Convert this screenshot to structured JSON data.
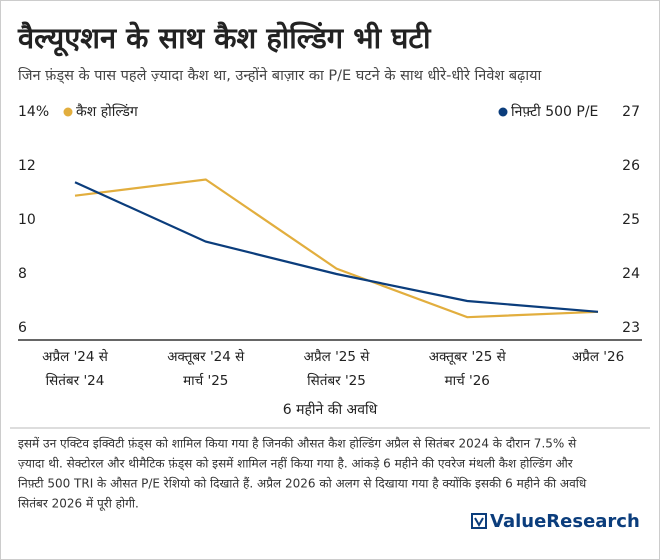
{
  "chart_data": {
    "type": "line",
    "title": "वैल्यूएशन के साथ कैश होल्डिंग भी घटी",
    "subtitle": "जिन फ़ंड्स के पास पहले ज़्यादा कैश था, उन्होंने बाज़ार का P/E घटने के साथ धीरे-धीरे निवेश बढ़ाया",
    "x_label": "6 महीने की अवधि",
    "categories": [
      [
        "अप्रैल '24 से",
        "सितंबर '24"
      ],
      [
        "अक्तूबर '24 से",
        "मार्च '25"
      ],
      [
        "अप्रैल '25 से",
        "सितंबर '25"
      ],
      [
        "अक्तूबर '25 से",
        "मार्च '26"
      ],
      [
        "अप्रैल '26"
      ]
    ],
    "series": [
      {
        "name": "कैश होल्डिंग",
        "color": "#e2ae3e",
        "values": [
          10.9,
          11.5,
          8.2,
          6.4,
          6.6
        ]
      },
      {
        "name": "निफ़्टी 500 P/E",
        "color": "#0b3d7c",
        "axis": "y2",
        "values": [
          25.7,
          24.6,
          24.0,
          23.5,
          23.3
        ]
      }
    ],
    "ylim": [
      6,
      14
    ],
    "yticks": [
      6,
      8,
      10,
      12,
      {
        "value": 14,
        "label": "14%"
      }
    ],
    "y2lim": [
      23,
      27
    ],
    "y2ticks": [
      23,
      24,
      25,
      26,
      27
    ]
  },
  "footer": {
    "note": [
      "इसमें उन एक्टिव इक्विटी फ़ंड्स को शामिल किया गया है जिनकी औसत कैश होल्डिंग अप्रैल से सितंबर 2024 के दौरान 7.5% से",
      "ज़्यादा थी. सेक्टोरल और थीमैटिक फ़ंड्स को इसमें शामिल नहीं किया गया है. आंकड़े 6 महीने की एवरेज मंथली कैश होल्डिंग और",
      "निफ़्टी 500 TRI के औसत P/E रेशियो को दिखाते हैं. अप्रैल 2026 को अलग से दिखाया गया है क्योंकि इसकी 6 महीने की अवधि",
      "सितंबर 2026 में पूरी होगी."
    ],
    "brand": "ValueResearch"
  }
}
